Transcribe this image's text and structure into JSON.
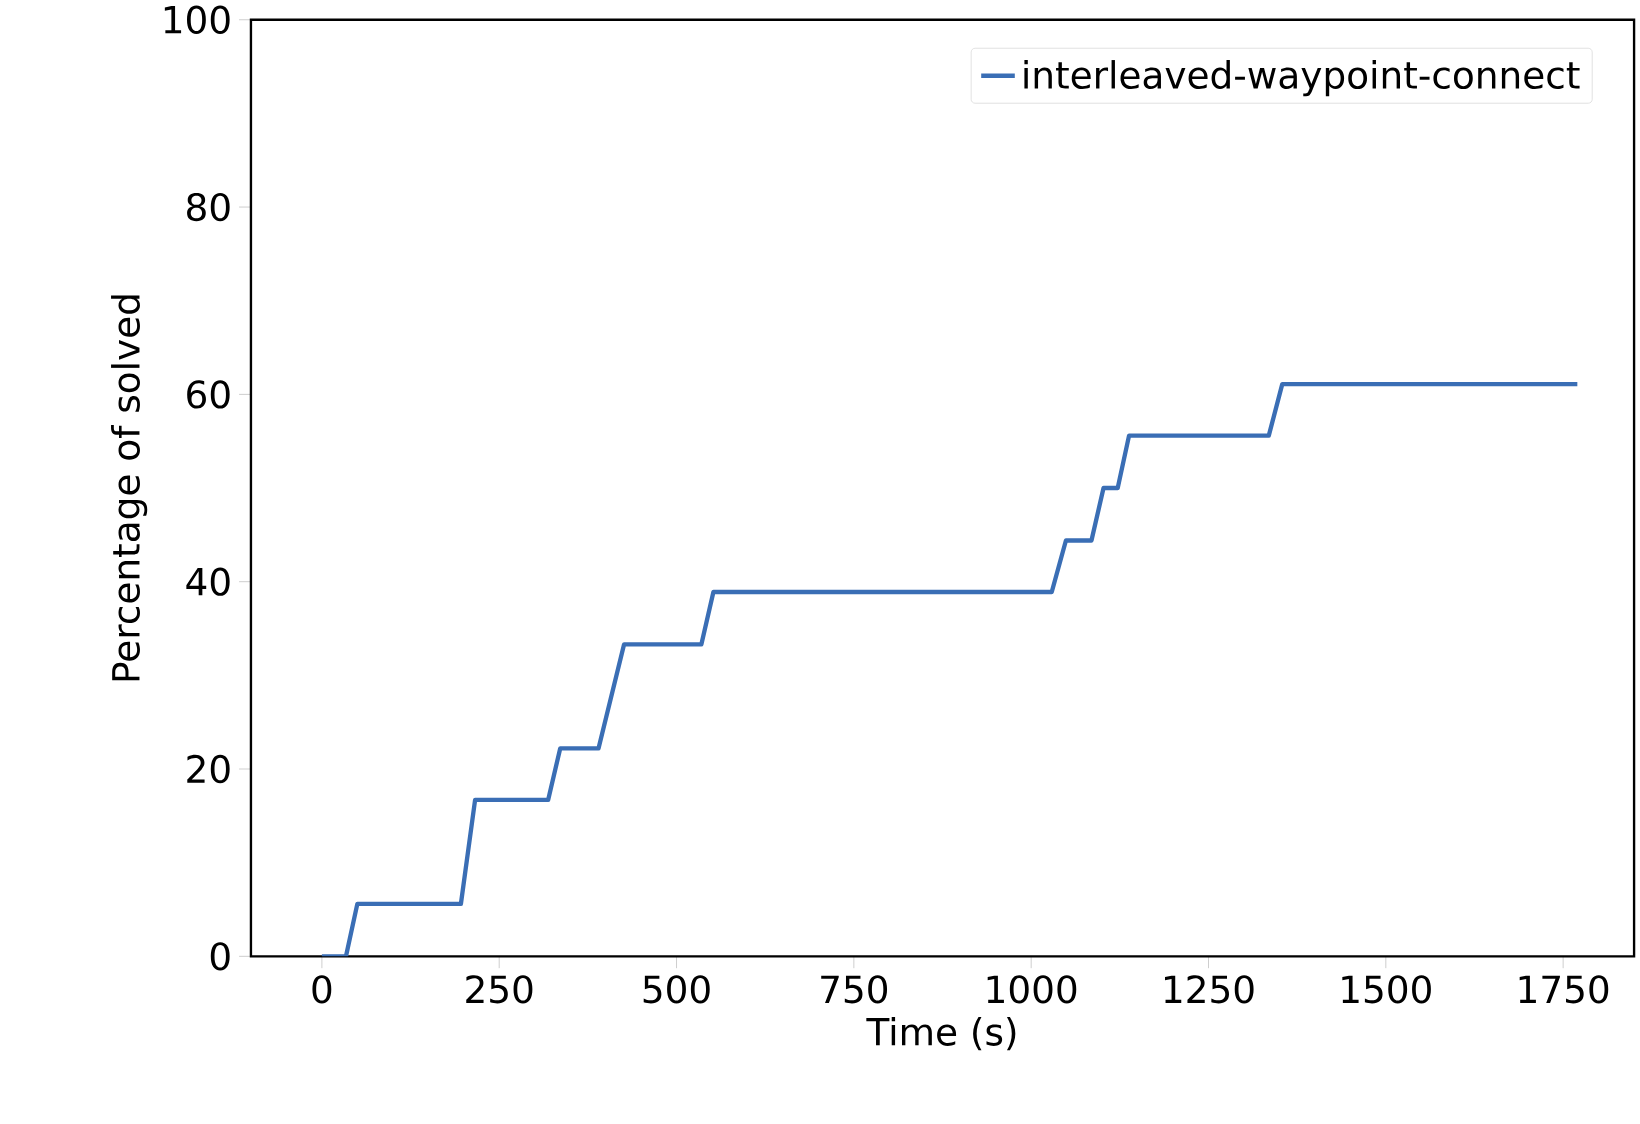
{
  "chart_data": {
    "type": "line",
    "xlabel": "Time (s)",
    "ylabel": "Percentage of solved",
    "xlim": [
      -100,
      1850
    ],
    "ylim": [
      0,
      100
    ],
    "xticks": [
      0,
      250,
      500,
      750,
      1000,
      1250,
      1500,
      1750
    ],
    "yticks": [
      0,
      20,
      40,
      60,
      80,
      100
    ],
    "legend": "top right",
    "grid": false,
    "series": [
      {
        "name": "interleaved-waypoint-connect",
        "color": "#3a6eb5",
        "x": [
          0,
          34,
          50,
          196,
          216,
          319,
          336,
          390,
          426,
          535,
          552,
          1029,
          1049,
          1085,
          1102,
          1122,
          1138,
          1335,
          1354,
          1770
        ],
        "values": [
          0,
          0,
          5.6,
          5.6,
          16.7,
          16.7,
          22.2,
          22.2,
          33.3,
          33.3,
          38.9,
          38.9,
          44.4,
          44.4,
          50,
          50,
          55.6,
          55.6,
          61.1,
          61.1
        ]
      }
    ]
  }
}
